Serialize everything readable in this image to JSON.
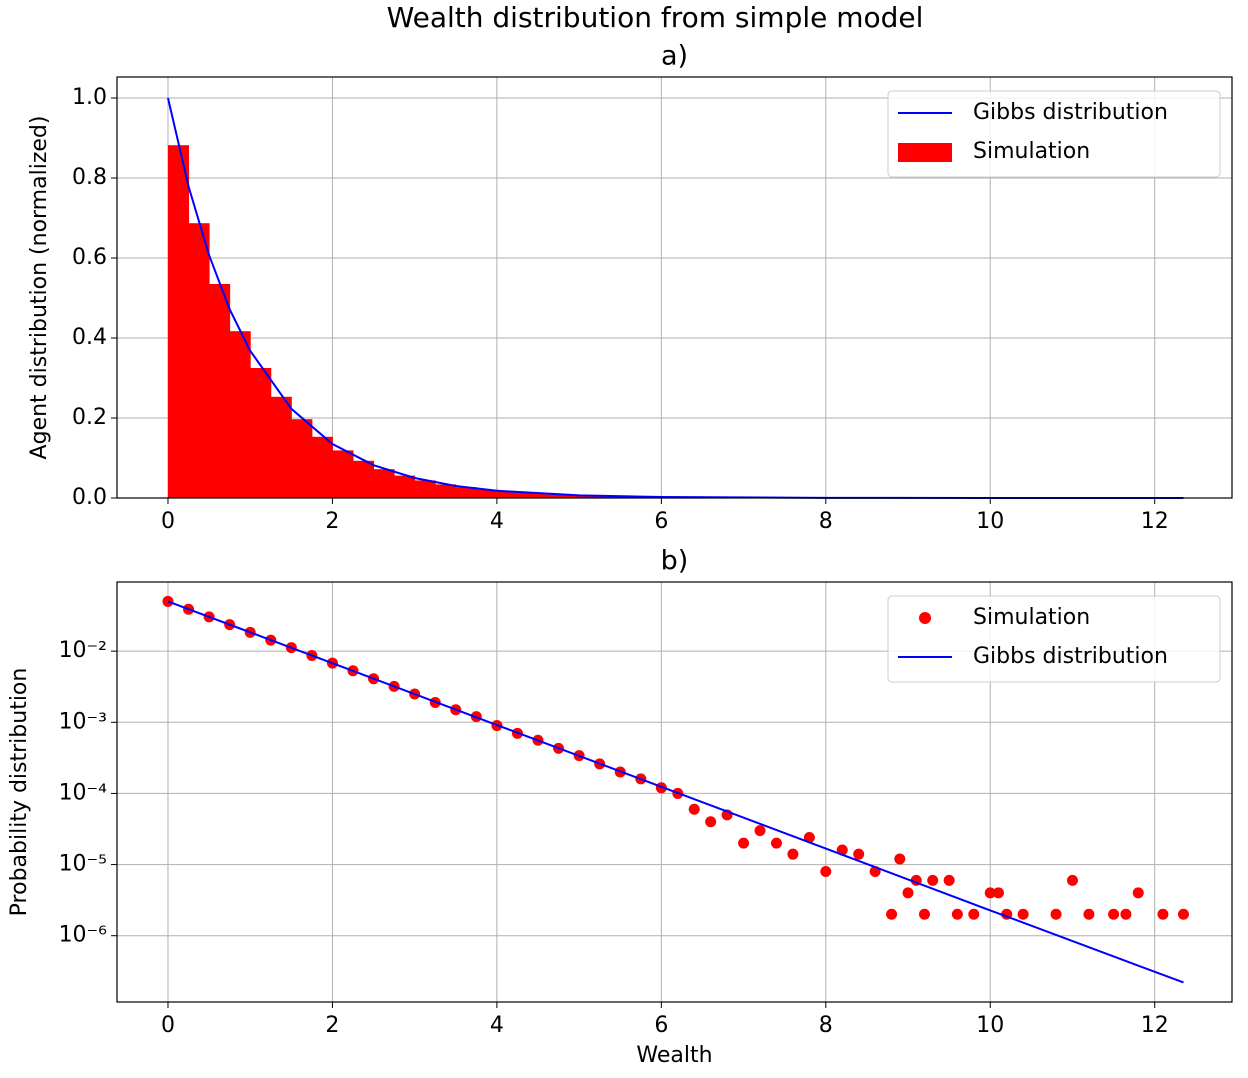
{
  "title": "Wealth distribution from simple model",
  "chart_data": [
    {
      "type": "histogram",
      "title": "a)",
      "ylabel": "Agent distribution (normalized)",
      "xlim": [
        -0.62,
        12.94
      ],
      "ylim": [
        0,
        1.0525
      ],
      "xticks": [
        0,
        2,
        4,
        6,
        8,
        10,
        12
      ],
      "yticks": [
        {
          "value": 0,
          "label": "0.0"
        },
        {
          "value": 0.2,
          "label": "0.2"
        },
        {
          "value": 0.4,
          "label": "0.4"
        },
        {
          "value": 0.6,
          "label": "0.6"
        },
        {
          "value": 0.8,
          "label": "0.8"
        },
        {
          "value": 1,
          "label": "1.0"
        }
      ],
      "grid": true,
      "legend": "upper right",
      "series": [
        {
          "name": "Gibbs distribution",
          "type": "line",
          "color": "#0000ff",
          "x": [
            0,
            0.25,
            0.5,
            0.75,
            1,
            1.5,
            2,
            2.5,
            3,
            3.5,
            4,
            5,
            6,
            8,
            10,
            12.35
          ],
          "values": [
            1,
            0.779,
            0.607,
            0.472,
            0.368,
            0.223,
            0.135,
            0.082,
            0.05,
            0.03,
            0.018,
            0.0067,
            0.0025,
            0.0003,
            5e-05,
            0
          ]
        },
        {
          "name": "Simulation",
          "type": "histogram",
          "color": "#ff0000",
          "bins": [
            0,
            0.25,
            0.5,
            0.75,
            1,
            1.25,
            1.5,
            1.75,
            2,
            2.25,
            2.5,
            2.75,
            3,
            3.25,
            3.5,
            3.75,
            4,
            4.25,
            4.5,
            4.75,
            5,
            5.25,
            5.5,
            5.75,
            6
          ],
          "values": [
            0.882,
            0.687,
            0.535,
            0.417,
            0.325,
            0.253,
            0.197,
            0.153,
            0.119,
            0.093,
            0.072,
            0.056,
            0.044,
            0.034,
            0.027,
            0.021,
            0.016,
            0.013,
            0.0098,
            0.0076,
            0.0059,
            0.0046,
            0.0036,
            0.0028
          ]
        }
      ]
    },
    {
      "type": "scatter",
      "title": "b)",
      "xlabel": "Wealth",
      "ylabel": "Probability distribution",
      "log_y": true,
      "xlim": [
        -0.62,
        12.94
      ],
      "ylim": [
        1.17e-07,
        0.0938
      ],
      "xticks": [
        0,
        2,
        4,
        6,
        8,
        10,
        12
      ],
      "yticks": [
        {
          "value": 0.01,
          "label": "10⁻²"
        },
        {
          "value": 0.001,
          "label": "10⁻³"
        },
        {
          "value": 0.0001,
          "label": "10⁻⁴"
        },
        {
          "value": 1e-05,
          "label": "10⁻⁵"
        },
        {
          "value": 1e-06,
          "label": "10⁻⁶"
        }
      ],
      "grid": true,
      "legend": "upper right",
      "series": [
        {
          "name": "Simulation",
          "type": "scatter",
          "color": "#ff0000",
          "x": [
            0,
            0.25,
            0.5,
            0.75,
            1,
            1.25,
            1.5,
            1.75,
            2,
            2.25,
            2.5,
            2.75,
            3,
            3.25,
            3.5,
            3.75,
            4,
            4.25,
            4.5,
            4.75,
            5,
            5.25,
            5.5,
            5.75,
            6,
            6.2,
            6.4,
            6.6,
            6.8,
            7.0,
            7.2,
            7.4,
            7.6,
            7.8,
            8.0,
            8.2,
            8.4,
            8.6,
            8.8,
            8.9,
            9.0,
            9.1,
            9.2,
            9.3,
            9.5,
            9.6,
            9.8,
            10.0,
            10.1,
            10.2,
            10.4,
            10.8,
            11.0,
            11.2,
            11.5,
            11.65,
            11.8,
            12.1,
            12.35
          ],
          "values": [
            0.05,
            0.0389,
            0.0303,
            0.0236,
            0.0184,
            0.0143,
            0.0112,
            0.0087,
            0.0068,
            0.0053,
            0.0041,
            0.0032,
            0.0025,
            0.0019,
            0.0015,
            0.0012,
            0.0009,
            0.0007,
            0.00056,
            0.00043,
            0.00034,
            0.00026,
            0.0002,
            0.00016,
            0.00012,
            0.0001,
            6e-05,
            4e-05,
            5e-05,
            2e-05,
            3e-05,
            2e-05,
            1.4e-05,
            2.4e-05,
            8e-06,
            1.6e-05,
            1.4e-05,
            8e-06,
            2e-06,
            1.2e-05,
            4e-06,
            6e-06,
            2e-06,
            6e-06,
            6e-06,
            2e-06,
            2e-06,
            4e-06,
            4e-06,
            2e-06,
            2e-06,
            2e-06,
            6e-06,
            2e-06,
            2e-06,
            2e-06,
            4e-06,
            2e-06,
            2e-06
          ]
        },
        {
          "name": "Gibbs distribution",
          "type": "line",
          "color": "#0000ff",
          "x": [
            0,
            2,
            4,
            6,
            8,
            10,
            12.35
          ],
          "values": [
            0.05,
            0.00677,
            0.000916,
            0.000124,
            1.68e-05,
            2.27e-06,
            2.2e-07
          ]
        }
      ]
    }
  ]
}
